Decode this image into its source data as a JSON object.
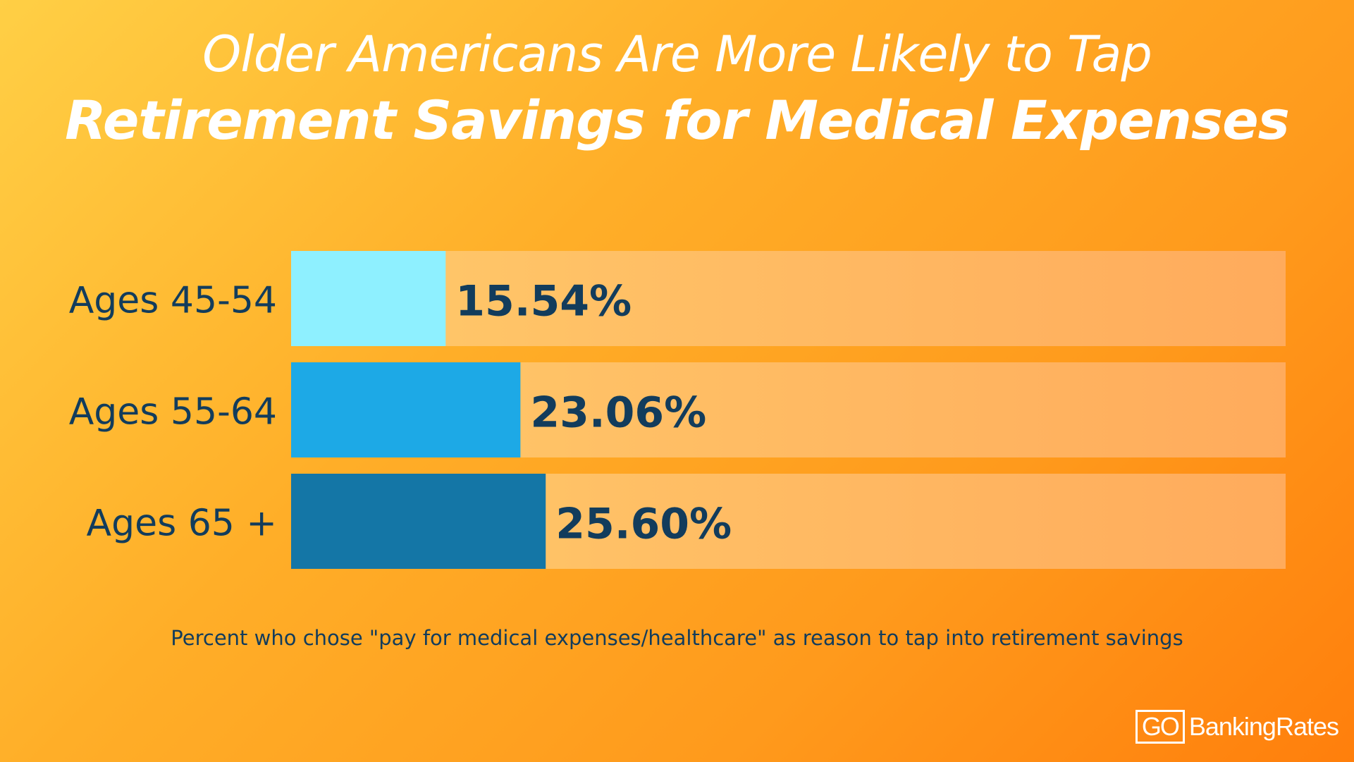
{
  "chart_data": {
    "type": "bar",
    "orientation": "horizontal",
    "title_line1": "Older Americans Are More Likely to Tap",
    "title_line2": "Retirement Savings for Medical Expenses",
    "categories": [
      "Ages 45-54",
      "Ages 55-64",
      "Ages 65 +"
    ],
    "values": [
      15.54,
      23.06,
      25.6
    ],
    "value_labels": [
      "15.54%",
      "23.06%",
      "25.60%"
    ],
    "xlim": [
      0,
      100
    ],
    "bar_colors": [
      "#8ef0ff",
      "#1da9e6",
      "#1476a6"
    ],
    "track_color": "#ffc980",
    "label_color": "#123c5c",
    "caption": "Percent who chose \"pay for medical expenses/healthcare\" as reason to tap into retirement savings"
  },
  "logo": {
    "go": "GO",
    "rest": "BankingRates"
  }
}
